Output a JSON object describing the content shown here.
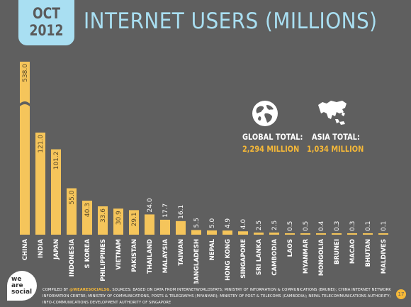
{
  "header": {
    "month": "OCT",
    "year": "2012",
    "title": "INTERNET USERS (MILLIONS)"
  },
  "totals": {
    "global_label": "GLOBAL TOTAL:",
    "global_value": "2,294 MILLION",
    "asia_label": "ASIA TOTAL:",
    "asia_value": "1,034 MILLION",
    "global_icon": "globe-icon",
    "asia_icon": "asia-map-icon"
  },
  "footer": {
    "logo_line1": "we",
    "logo_line2": "are",
    "logo_line3": "social",
    "source_prefix": "COMPILED BY",
    "source_handle": "@WEARESOCIALSG.",
    "source_text": "SOURCES: BASED ON DATA FROM INTERNETWORLDSTATS; MINISTRY OF INFORMATION & COMMUNICATIONS (BRUNEI); CHINA INTERNET NETWORK INFORMATION CENTRE; MINISTRY OF COMMUNICATIONS, POSTS & TELEGRAPHS (MYANMAR); MINISTRY OF POST & TELECOMS (CAMBODIA); NEPAL TELECOMMUNICATIONS AUTHORITY; INFO-COMMUNICATIONS DEVELOPMENT AUTHORITY OF SINGAPORE",
    "page_number": "17"
  },
  "colors": {
    "background": "#5f5f5f",
    "bar": "#f5c55b",
    "accent": "#f5b838",
    "title": "#a9dff2",
    "label": "#ffffff"
  },
  "chart_data": {
    "type": "bar",
    "title": "INTERNET USERS (MILLIONS)",
    "categories": [
      "CHINA",
      "INDIA",
      "JAPAN",
      "INDONESIA",
      "S KOREA",
      "PHILIPPINES",
      "VIETNAM",
      "PAKISTAN",
      "THAILAND",
      "MALAYSIA",
      "TAIWAN",
      "BANGLADESH",
      "NEPAL",
      "HONG KONG",
      "SINGAPORE",
      "SRI LANKA",
      "CAMBODIA",
      "LAOS",
      "MYANMAR",
      "MONGOLIA",
      "BRUNEI",
      "MACAO",
      "BHUTAN",
      "MALDIVES"
    ],
    "values": [
      538.0,
      121.0,
      101.2,
      55.0,
      40.3,
      33.6,
      30.9,
      29.1,
      24.0,
      17.7,
      16.1,
      5.5,
      5.0,
      4.9,
      4.0,
      2.5,
      2.5,
      0.5,
      0.5,
      0.4,
      0.3,
      0.3,
      0.1,
      0.1
    ],
    "value_labels": [
      "538.0",
      "121.0",
      "101.2",
      "55.0",
      "40.3",
      "33.6",
      "30.9",
      "29.1",
      "24.0",
      "17.7",
      "16.1",
      "5.5",
      "5.0",
      "4.9",
      "4.0",
      "2.5",
      "2.5",
      "0.5",
      "0.5",
      "0.4",
      "0.3",
      "0.3",
      "0.1",
      "0.1"
    ],
    "axis_break": "between 121 and 538 on the CHINA bar",
    "grid": false,
    "legend": "none"
  }
}
